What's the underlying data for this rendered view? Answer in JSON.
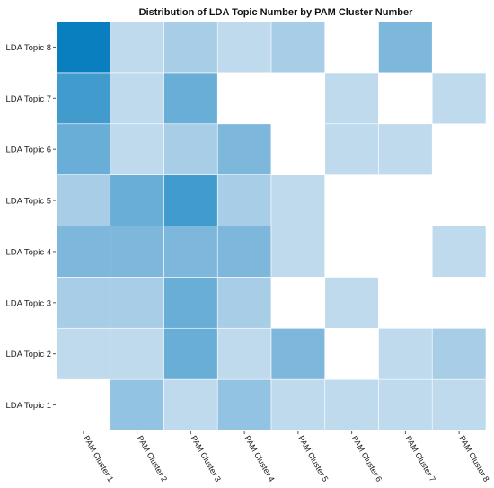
{
  "chart_data": {
    "type": "heatmap",
    "title": "Distribution of LDA Topic Number by PAM Cluster Number",
    "xlabel": "",
    "ylabel": "",
    "x_categories": [
      "PAM Cluster 1",
      "PAM Cluster 2",
      "PAM Cluster 3",
      "PAM Cluster 4",
      "PAM Cluster 5",
      "PAM Cluster 6",
      "PAM Cluster 7",
      "PAM Cluster 8"
    ],
    "y_categories": [
      "LDA Topic 1",
      "LDA Topic 2",
      "LDA Topic 3",
      "LDA Topic 4",
      "LDA Topic 5",
      "LDA Topic 6",
      "LDA Topic 7",
      "LDA Topic 8"
    ],
    "color_low": "#ffffff",
    "color_high": "#0a7fbf",
    "values": [
      [
        0,
        3,
        1,
        3,
        1,
        1,
        1,
        1
      ],
      [
        1,
        1,
        5,
        1,
        4,
        0,
        1,
        2
      ],
      [
        2,
        2,
        5,
        2,
        0,
        1,
        0,
        0
      ],
      [
        4,
        4,
        4,
        4,
        1,
        0,
        0,
        1
      ],
      [
        2,
        5,
        7,
        2,
        1,
        0,
        0,
        0
      ],
      [
        5,
        1,
        2,
        4,
        0,
        1,
        1,
        0
      ],
      [
        7,
        1,
        5,
        0,
        0,
        1,
        0,
        1
      ],
      [
        10,
        1,
        2,
        1,
        2,
        0,
        4,
        0
      ]
    ],
    "value_range": [
      0,
      10
    ],
    "grid": false,
    "legend": "none"
  }
}
